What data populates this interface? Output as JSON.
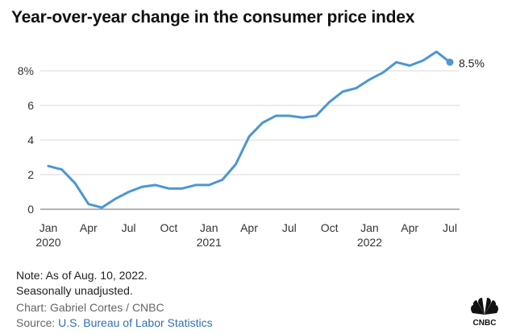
{
  "title": "Year-over-year change in the consumer price index",
  "end_label": "8.5%",
  "notes": [
    "Note: As of Aug. 10, 2022.",
    "Seasonally unadjusted."
  ],
  "credit": "Chart: Gabriel Cortes / CNBC",
  "source_prefix": "Source: ",
  "source_link": "U.S. Bureau of Labor Statistics",
  "logo_text": "CNBC",
  "colors": {
    "line": "#4a97d4",
    "grid": "#d9d9d9",
    "source_link": "#2f6fb2"
  },
  "chart_data": {
    "type": "line",
    "title": "Year-over-year change in the consumer price index",
    "xlabel": "",
    "ylabel": "",
    "ylim": [
      0,
      9.5
    ],
    "y_ticks": [
      "0",
      "2",
      "4",
      "6",
      "8%"
    ],
    "y_tick_values": [
      0,
      2,
      4,
      6,
      8
    ],
    "x_ticks": [
      {
        "label": "Jan",
        "year": "2020",
        "index": 0
      },
      {
        "label": "Apr",
        "year": "",
        "index": 3
      },
      {
        "label": "Jul",
        "year": "",
        "index": 6
      },
      {
        "label": "Oct",
        "year": "",
        "index": 9
      },
      {
        "label": "Jan",
        "year": "2021",
        "index": 12
      },
      {
        "label": "Apr",
        "year": "",
        "index": 15
      },
      {
        "label": "Jul",
        "year": "",
        "index": 18
      },
      {
        "label": "Oct",
        "year": "",
        "index": 21
      },
      {
        "label": "Jan",
        "year": "2022",
        "index": 24
      },
      {
        "label": "Apr",
        "year": "",
        "index": 27
      },
      {
        "label": "Jul",
        "year": "",
        "index": 30
      }
    ],
    "x": [
      "2020-01",
      "2020-02",
      "2020-03",
      "2020-04",
      "2020-05",
      "2020-06",
      "2020-07",
      "2020-08",
      "2020-09",
      "2020-10",
      "2020-11",
      "2020-12",
      "2021-01",
      "2021-02",
      "2021-03",
      "2021-04",
      "2021-05",
      "2021-06",
      "2021-07",
      "2021-08",
      "2021-09",
      "2021-10",
      "2021-11",
      "2021-12",
      "2022-01",
      "2022-02",
      "2022-03",
      "2022-04",
      "2022-05",
      "2022-06",
      "2022-07"
    ],
    "series": [
      {
        "values": [
          2.5,
          2.3,
          1.5,
          0.3,
          0.1,
          0.6,
          1.0,
          1.3,
          1.4,
          1.2,
          1.2,
          1.4,
          1.4,
          1.7,
          2.6,
          4.2,
          5.0,
          5.4,
          5.4,
          5.3,
          5.4,
          6.2,
          6.8,
          7.0,
          7.5,
          7.9,
          8.5,
          8.3,
          8.6,
          9.1,
          8.5
        ]
      }
    ],
    "grid": true,
    "end_marker": true
  }
}
